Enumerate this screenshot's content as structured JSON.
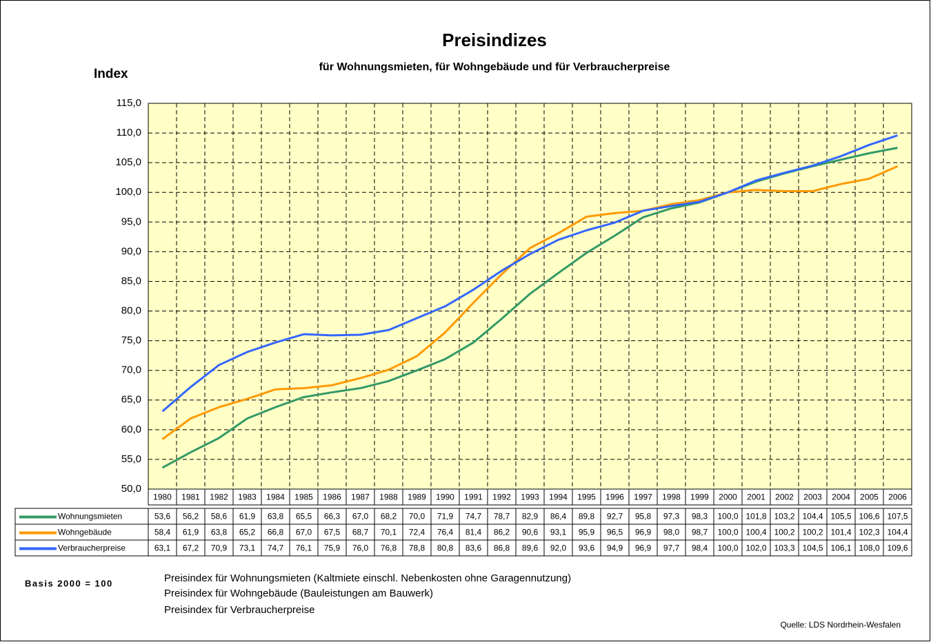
{
  "chart_data": {
    "type": "line",
    "title": "Preisindizes",
    "subtitle": "für Wohnungsmieten, für Wohngebäude und für Verbraucherpreise",
    "y_label": "Index",
    "categories": [
      "1980",
      "1981",
      "1982",
      "1983",
      "1984",
      "1985",
      "1986",
      "1987",
      "1988",
      "1989",
      "1990",
      "1991",
      "1992",
      "1993",
      "1994",
      "1995",
      "1996",
      "1997",
      "1998",
      "1999",
      "2000",
      "2001",
      "2002",
      "2003",
      "2004",
      "2005",
      "2006"
    ],
    "series": [
      {
        "name": "Wohnungsmieten",
        "color": "#339966",
        "values": [
          53.6,
          56.2,
          58.6,
          61.9,
          63.8,
          65.5,
          66.3,
          67.0,
          68.2,
          70.0,
          71.9,
          74.7,
          78.7,
          82.9,
          86.4,
          89.8,
          92.7,
          95.8,
          97.3,
          98.3,
          100.0,
          101.8,
          103.2,
          104.4,
          105.5,
          106.6,
          107.5
        ],
        "value_labels": [
          "53,6",
          "56,2",
          "58,6",
          "61,9",
          "63,8",
          "65,5",
          "66,3",
          "67,0",
          "68,2",
          "70,0",
          "71,9",
          "74,7",
          "78,7",
          "82,9",
          "86,4",
          "89,8",
          "92,7",
          "95,8",
          "97,3",
          "98,3",
          "100,0",
          "101,8",
          "103,2",
          "104,4",
          "105,5",
          "106,6",
          "107,5"
        ]
      },
      {
        "name": "Wohngebäude",
        "color": "#ff9900",
        "values": [
          58.4,
          61.9,
          63.8,
          65.2,
          66.8,
          67.0,
          67.5,
          68.7,
          70.1,
          72.4,
          76.4,
          81.4,
          86.2,
          90.6,
          93.1,
          95.9,
          96.5,
          96.9,
          98.0,
          98.7,
          100.0,
          100.4,
          100.2,
          100.2,
          101.4,
          102.3,
          104.4
        ],
        "value_labels": [
          "58,4",
          "61,9",
          "63,8",
          "65,2",
          "66,8",
          "67,0",
          "67,5",
          "68,7",
          "70,1",
          "72,4",
          "76,4",
          "81,4",
          "86,2",
          "90,6",
          "93,1",
          "95,9",
          "96,5",
          "96,9",
          "98,0",
          "98,7",
          "100,0",
          "100,4",
          "100,2",
          "100,2",
          "101,4",
          "102,3",
          "104,4"
        ]
      },
      {
        "name": "Verbraucherpreise",
        "color": "#3366ff",
        "values": [
          63.1,
          67.2,
          70.9,
          73.1,
          74.7,
          76.1,
          75.9,
          76.0,
          76.8,
          78.8,
          80.8,
          83.6,
          86.8,
          89.6,
          92.0,
          93.6,
          94.9,
          96.9,
          97.7,
          98.4,
          100.0,
          102.0,
          103.3,
          104.5,
          106.1,
          108.0,
          109.6
        ],
        "value_labels": [
          "63,1",
          "67,2",
          "70,9",
          "73,1",
          "74,7",
          "76,1",
          "75,9",
          "76,0",
          "76,8",
          "78,8",
          "80,8",
          "83,6",
          "86,8",
          "89,6",
          "92,0",
          "93,6",
          "94,9",
          "96,9",
          "97,7",
          "98,4",
          "100,0",
          "102,0",
          "103,3",
          "104,5",
          "106,1",
          "108,0",
          "109,6"
        ]
      }
    ],
    "ylim": [
      50,
      115
    ],
    "yticks": [
      {
        "value": 50,
        "label": "50,0"
      },
      {
        "value": 55,
        "label": "55,0"
      },
      {
        "value": 60,
        "label": "60,0"
      },
      {
        "value": 65,
        "label": "65,0"
      },
      {
        "value": 70,
        "label": "70,0"
      },
      {
        "value": 75,
        "label": "75,0"
      },
      {
        "value": 80,
        "label": "80,0"
      },
      {
        "value": 85,
        "label": "85,0"
      },
      {
        "value": 90,
        "label": "90,0"
      },
      {
        "value": 95,
        "label": "95,0"
      },
      {
        "value": 100,
        "label": "100,0"
      },
      {
        "value": 105,
        "label": "105,0"
      },
      {
        "value": 110,
        "label": "110,0"
      },
      {
        "value": 115,
        "label": "115,0"
      }
    ],
    "grid": true,
    "basis": "Basis 2000 = 100",
    "notes": [
      "Preisindex für Wohnungsmieten (Kaltmiete einschl. Nebenkosten ohne Garagennutzung)",
      "Preisindex für Wohngebäude (Bauleistungen am Bauwerk)",
      "Preisindex für Verbraucherpreise"
    ],
    "source": "Quelle: LDS Nordrhein-Wesfalen"
  }
}
